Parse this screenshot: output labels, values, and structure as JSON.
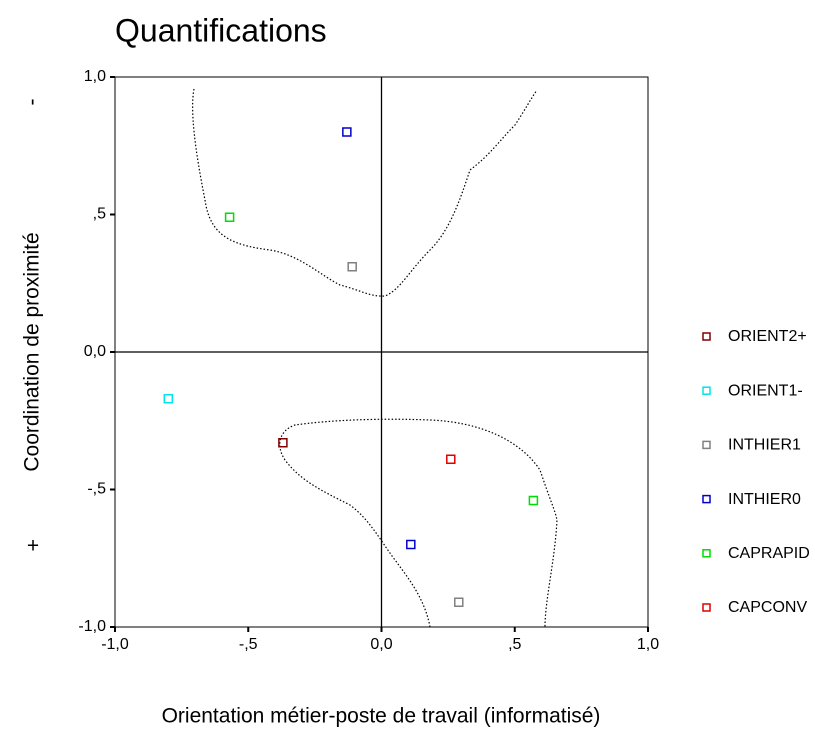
{
  "chart_data": {
    "type": "scatter",
    "title": "Quantifications",
    "x_label": "Orientation métier-poste de travail (informatisé)",
    "y_label": "Coordination de proximité",
    "y_annotations": [
      "-",
      "+"
    ],
    "xlim": [
      -1,
      1
    ],
    "ylim": [
      -1,
      1
    ],
    "xticks": [
      {
        "value": -1,
        "label": "-1,0"
      },
      {
        "value": -0.5,
        "label": "-,5"
      },
      {
        "value": 0,
        "label": "0,0"
      },
      {
        "value": 0.5,
        "label": ",5"
      },
      {
        "value": 1,
        "label": "1,0"
      }
    ],
    "yticks": [
      {
        "value": -1,
        "label": "-1,0"
      },
      {
        "value": -0.5,
        "label": "-,5"
      },
      {
        "value": 0,
        "label": "0,0"
      },
      {
        "value": 0.5,
        "label": ",5"
      },
      {
        "value": 1,
        "label": "1,0"
      }
    ],
    "series": [
      {
        "name": "ORIENT2+",
        "color": "#800000",
        "x": [
          -0.37
        ],
        "y": [
          -0.33
        ]
      },
      {
        "name": "ORIENT1-",
        "color": "#00e5e5",
        "x": [
          -0.8
        ],
        "y": [
          -0.17
        ]
      },
      {
        "name": "INTHIER1",
        "color": "#808080",
        "x": [
          -0.11,
          0.29
        ],
        "y": [
          0.31,
          -0.91
        ]
      },
      {
        "name": "INTHIER0",
        "color": "#0000cc",
        "x": [
          -0.13,
          0.11
        ],
        "y": [
          0.8,
          -0.7
        ]
      },
      {
        "name": "CAPRAPID",
        "color": "#00dd00",
        "x": [
          -0.57,
          0.57
        ],
        "y": [
          0.49,
          -0.54
        ]
      },
      {
        "name": "CAPCONV",
        "color": "#e00000",
        "x": [
          0.26
        ],
        "y": [
          -0.39
        ]
      }
    ]
  }
}
